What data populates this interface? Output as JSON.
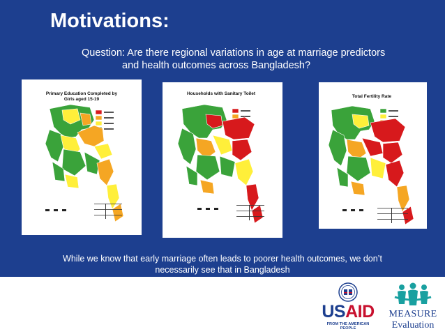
{
  "slide": {
    "title": "Motivations:",
    "question_line1": "Question: Are there regional variations in age at marriage predictors",
    "question_line2": "and health outcomes across Bangladesh?",
    "caption_line1": "While we know that early marriage often leads to poorer health outcomes, we don’t",
    "caption_line2": "necessarily see that in Bangladesh"
  },
  "maps": [
    {
      "title_line1": "Primary Education Completed by",
      "title_line2": "Girls aged 15-19",
      "palette": [
        "#d7191c",
        "#f5a623",
        "#ffef3a",
        "#3aa33a"
      ]
    },
    {
      "title_line1": "Households with Sanitary Toilet",
      "title_line2": "",
      "palette": [
        "#d7191c",
        "#f5a623",
        "#ffef3a",
        "#3aa33a"
      ]
    },
    {
      "title_line1": "Total Fertility Rate",
      "title_line2": "",
      "palette": [
        "#3aa33a",
        "#ffef3a",
        "#f5a623",
        "#d7191c"
      ]
    }
  ],
  "logos": {
    "usaid_us": "US",
    "usaid_aid": "AID",
    "usaid_tagline": "FROM THE AMERICAN PEOPLE",
    "measure_line1": "MEASURE",
    "measure_line2": "Evaluation"
  },
  "colors": {
    "background_blue": "#1d3f8f",
    "usaid_red": "#c8102e",
    "measure_teal": "#19a0a0"
  }
}
